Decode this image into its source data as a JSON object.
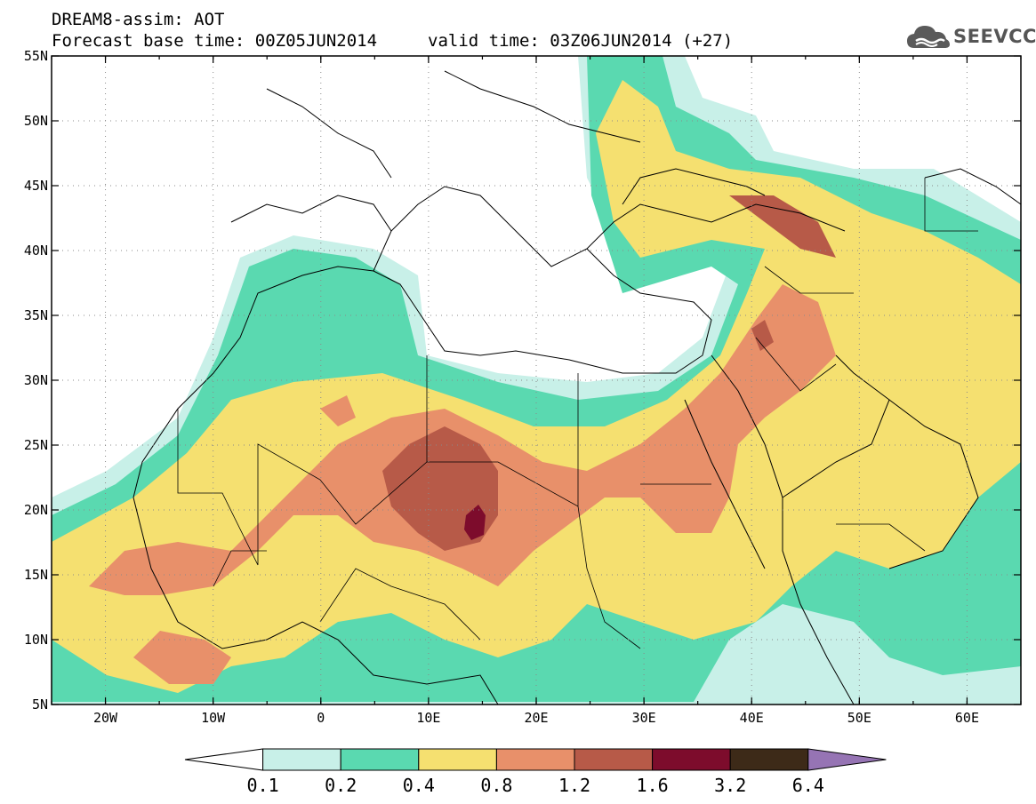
{
  "header": {
    "title": "DREAM8-assim: AOT",
    "forecast_base": "Forecast base time: 00Z05JUN2014",
    "valid_time": "valid time: 03Z06JUN2014 (+27)"
  },
  "logo": {
    "text": "SEEVCCC",
    "icon": "cloud-logo-icon",
    "color": "#5a5a5a"
  },
  "map": {
    "lat_labels": [
      "55N",
      "50N",
      "45N",
      "40N",
      "35N",
      "30N",
      "25N",
      "20N",
      "15N",
      "10N",
      "5N"
    ],
    "lon_labels": [
      "20W",
      "10W",
      "0",
      "10E",
      "20E",
      "30E",
      "40E",
      "50E",
      "60E"
    ],
    "lat_range": [
      5,
      55
    ],
    "lon_range": [
      -25,
      65
    ]
  },
  "colorbar": {
    "labels": [
      "0.1",
      "0.2",
      "0.4",
      "0.8",
      "1.2",
      "1.6",
      "3.2",
      "6.4"
    ],
    "colors": [
      "#c8f0e8",
      "#5ad9b0",
      "#f5e070",
      "#e8906a",
      "#b75a48",
      "#7d0c2c",
      "#3d2a18",
      "#9674b4"
    ],
    "under_color": "#ffffff"
  }
}
